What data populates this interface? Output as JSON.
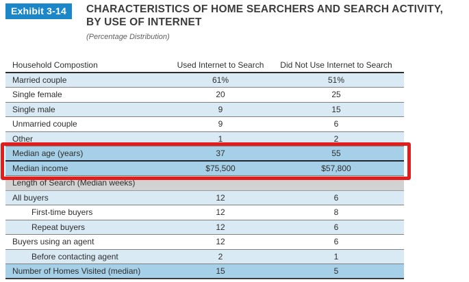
{
  "exhibit": {
    "label": "Exhibit 3-14",
    "title_line1": "CHARACTERISTICS OF HOME SEARCHERS AND SEARCH ACTIVITY,",
    "title_line2": "BY USE OF INTERNET",
    "subtitle": "(Percentage Distribution)"
  },
  "table": {
    "columns": [
      "Household Compostion",
      "Used Internet to Search",
      "Did Not Use Internet to Search"
    ],
    "rows": [
      {
        "label": "Married couple",
        "used": "61%",
        "not_used": "51%"
      },
      {
        "label": "Single female",
        "used": "20",
        "not_used": "25"
      },
      {
        "label": "Single male",
        "used": "9",
        "not_used": "15"
      },
      {
        "label": "Unmarried couple",
        "used": "9",
        "not_used": "6"
      },
      {
        "label": "Other",
        "used": "1",
        "not_used": "2"
      },
      {
        "label": "Median age (years)",
        "used": "37",
        "not_used": "55"
      },
      {
        "label": "Median income",
        "used": "$75,500",
        "not_used": "$57,800"
      },
      {
        "label": "Length of Search (Median weeks)"
      },
      {
        "label": "All buyers",
        "used": "12",
        "not_used": "6"
      },
      {
        "label": "First-time buyers",
        "used": "12",
        "not_used": "8"
      },
      {
        "label": "Repeat buyers",
        "used": "12",
        "not_used": "6"
      },
      {
        "label": "Buyers using an agent",
        "used": "12",
        "not_used": "6"
      },
      {
        "label": "Before contacting agent",
        "used": "2",
        "not_used": "1"
      },
      {
        "label": "Number of Homes Visited (median)",
        "used": "15",
        "not_used": "5"
      }
    ]
  },
  "annotation": {
    "highlighted_rows": [
      "Median age (years)",
      "Median income"
    ],
    "highlight_color": "#e11e1e"
  },
  "colors": {
    "badge_blue": "#1b87c8",
    "row_light_blue": "#d9eaf5",
    "row_medium_blue": "#a6d0e7",
    "section_gray": "#d2d2d2"
  }
}
